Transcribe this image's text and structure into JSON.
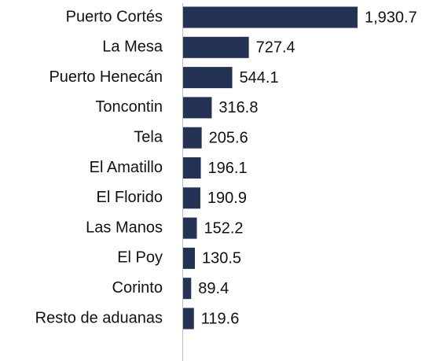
{
  "chart_data": {
    "type": "bar",
    "orientation": "horizontal",
    "categories": [
      "Puerto Cortés",
      "La Mesa",
      "Puerto Henecán",
      "Toncontin",
      "Tela",
      "El Amatillo",
      "El Florido",
      "Las Manos",
      "El Poy",
      "Corinto",
      "Resto de aduanas"
    ],
    "values": [
      1930.7,
      727.4,
      544.1,
      316.8,
      205.6,
      196.1,
      190.9,
      152.2,
      130.5,
      89.4,
      119.6
    ],
    "value_labels": [
      "1,930.7",
      "727.4",
      "544.1",
      "316.8",
      "205.6",
      "196.1",
      "190.9",
      "152.2",
      "130.5",
      "89.4",
      "119.6"
    ],
    "color": "#243256"
  }
}
